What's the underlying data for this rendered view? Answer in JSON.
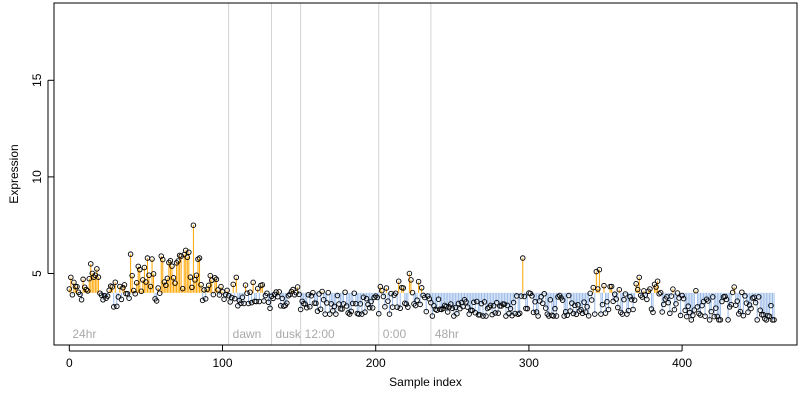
{
  "chart_data": {
    "type": "scatter",
    "title": "",
    "xlabel": "Sample index",
    "ylabel": "Expression",
    "xlim": [
      -10,
      475
    ],
    "ylim": [
      1.3,
      19
    ],
    "x_ticks": [
      0,
      100,
      200,
      300,
      400
    ],
    "y_ticks": [
      5,
      10,
      15
    ],
    "baseline": 4.0,
    "colors": {
      "above": "#ffa500",
      "below": "#9bbbe8",
      "points": "#000000",
      "divider": "#d3d3d3",
      "annotation": "#a9a9a9"
    },
    "dividers": [
      {
        "x": 104,
        "label": "dawn"
      },
      {
        "x": 132,
        "label": "dusk"
      },
      {
        "x": 151,
        "label": "12:00"
      },
      {
        "x": 202,
        "label": "0:00"
      },
      {
        "x": 236,
        "label": "48hr"
      }
    ],
    "start_label": "24hr",
    "segments": [
      {
        "from": 0,
        "to": 10,
        "base": 4.2,
        "min": 3.5,
        "max": 4.8,
        "seed": 1
      },
      {
        "from": 10,
        "to": 22,
        "base": 4.6,
        "min": 3.8,
        "max": 5.5,
        "seed": 2
      },
      {
        "from": 22,
        "to": 40,
        "base": 4.0,
        "min": 2.9,
        "max": 4.9,
        "seed": 3
      },
      {
        "from": 40,
        "to": 60,
        "base": 4.6,
        "min": 3.0,
        "max": 5.9,
        "seed": 4
      },
      {
        "from": 60,
        "to": 86,
        "base": 5.0,
        "min": 3.8,
        "max": 6.3,
        "seed": 5
      },
      {
        "from": 86,
        "to": 104,
        "base": 4.2,
        "min": 3.5,
        "max": 4.9,
        "seed": 6
      },
      {
        "from": 104,
        "to": 132,
        "base": 3.9,
        "min": 3.2,
        "max": 4.7,
        "seed": 7
      },
      {
        "from": 132,
        "to": 151,
        "base": 3.8,
        "min": 3.0,
        "max": 4.3,
        "seed": 8
      },
      {
        "from": 151,
        "to": 202,
        "base": 3.4,
        "min": 2.9,
        "max": 4.3,
        "seed": 9
      },
      {
        "from": 202,
        "to": 236,
        "base": 3.7,
        "min": 2.9,
        "max": 4.9,
        "seed": 10
      },
      {
        "from": 236,
        "to": 290,
        "base": 3.2,
        "min": 2.8,
        "max": 3.8,
        "seed": 11
      },
      {
        "from": 290,
        "to": 340,
        "base": 3.3,
        "min": 2.8,
        "max": 4.4,
        "seed": 12
      },
      {
        "from": 340,
        "to": 395,
        "base": 3.7,
        "min": 2.9,
        "max": 4.8,
        "seed": 13
      },
      {
        "from": 395,
        "to": 461,
        "base": 3.2,
        "min": 2.6,
        "max": 4.3,
        "seed": 14
      }
    ],
    "peaks": [
      {
        "x": 14,
        "y": 5.5
      },
      {
        "x": 40,
        "y": 6.0
      },
      {
        "x": 51,
        "y": 5.8
      },
      {
        "x": 60,
        "y": 5.9
      },
      {
        "x": 73,
        "y": 5.9
      },
      {
        "x": 76,
        "y": 6.2
      },
      {
        "x": 78,
        "y": 6.1
      },
      {
        "x": 81,
        "y": 7.5
      },
      {
        "x": 96,
        "y": 4.7
      },
      {
        "x": 109,
        "y": 4.8
      },
      {
        "x": 215,
        "y": 4.6
      },
      {
        "x": 222,
        "y": 5.0
      },
      {
        "x": 296,
        "y": 5.8
      },
      {
        "x": 344,
        "y": 5.1
      },
      {
        "x": 346,
        "y": 5.2
      },
      {
        "x": 372,
        "y": 4.8
      },
      {
        "x": 384,
        "y": 4.6
      },
      {
        "x": 434,
        "y": 4.3
      }
    ],
    "n_points": 461
  }
}
